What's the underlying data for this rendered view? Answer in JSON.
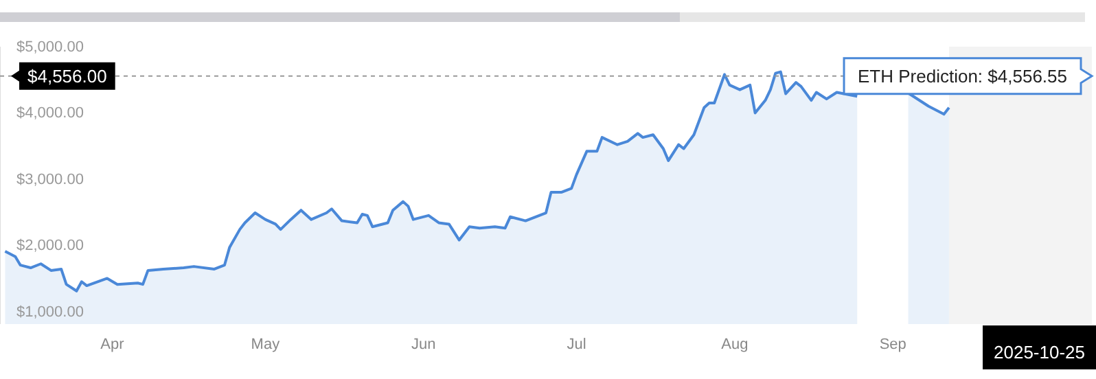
{
  "chart_data": {
    "type": "area",
    "x": [
      "2025-03-11",
      "2025-03-13",
      "2025-03-14",
      "2025-03-16",
      "2025-03-18",
      "2025-03-20",
      "2025-03-22",
      "2025-03-23",
      "2025-03-25",
      "2025-03-26",
      "2025-03-27",
      "2025-03-31",
      "2025-04-02",
      "2025-04-06",
      "2025-04-07",
      "2025-04-08",
      "2025-04-11",
      "2025-04-15",
      "2025-04-17",
      "2025-04-21",
      "2025-04-23",
      "2025-04-24",
      "2025-04-26",
      "2025-04-27",
      "2025-04-29",
      "2025-05-01",
      "2025-05-03",
      "2025-05-04",
      "2025-05-06",
      "2025-05-08",
      "2025-05-10",
      "2025-05-13",
      "2025-05-14",
      "2025-05-16",
      "2025-05-19",
      "2025-05-20",
      "2025-05-21",
      "2025-05-22",
      "2025-05-25",
      "2025-05-26",
      "2025-05-28",
      "2025-05-29",
      "2025-05-30",
      "2025-06-02",
      "2025-06-04",
      "2025-06-06",
      "2025-06-08",
      "2025-06-10",
      "2025-06-12",
      "2025-06-15",
      "2025-06-17",
      "2025-06-18",
      "2025-06-21",
      "2025-06-23",
      "2025-06-25",
      "2025-06-26",
      "2025-06-28",
      "2025-06-30",
      "2025-07-01",
      "2025-07-03",
      "2025-07-05",
      "2025-07-06",
      "2025-07-09",
      "2025-07-11",
      "2025-07-13",
      "2025-07-14",
      "2025-07-16",
      "2025-07-18",
      "2025-07-19",
      "2025-07-21",
      "2025-07-22",
      "2025-07-24",
      "2025-07-26",
      "2025-07-27",
      "2025-07-28",
      "2025-07-30",
      "2025-07-31",
      "2025-08-02",
      "2025-08-04",
      "2025-08-05",
      "2025-08-07",
      "2025-08-08",
      "2025-08-09",
      "2025-08-10",
      "2025-08-11",
      "2025-08-13",
      "2025-08-14",
      "2025-08-16",
      "2025-08-17",
      "2025-08-19",
      "2025-08-21",
      "2025-08-25",
      "2025-08-30",
      "2025-09-04",
      "2025-09-08",
      "2025-09-11",
      "2025-09-12"
    ],
    "series": [
      {
        "color": "#4a88d8",
        "values": [
          1910,
          1830,
          1700,
          1660,
          1720,
          1620,
          1640,
          1410,
          1310,
          1450,
          1390,
          1500,
          1410,
          1430,
          1410,
          1620,
          1640,
          1660,
          1680,
          1640,
          1700,
          1970,
          2240,
          2340,
          2490,
          2390,
          2320,
          2240,
          2390,
          2530,
          2390,
          2490,
          2550,
          2370,
          2340,
          2470,
          2450,
          2280,
          2340,
          2530,
          2660,
          2590,
          2390,
          2450,
          2340,
          2320,
          2080,
          2280,
          2260,
          2280,
          2260,
          2430,
          2370,
          2430,
          2490,
          2800,
          2800,
          2860,
          3070,
          3420,
          3420,
          3630,
          3520,
          3570,
          3690,
          3630,
          3670,
          3460,
          3280,
          3520,
          3460,
          3670,
          4080,
          4150,
          4150,
          4580,
          4420,
          4350,
          4420,
          4000,
          4190,
          4350,
          4600,
          4620,
          4290,
          4460,
          4400,
          4190,
          4310,
          4210,
          4310,
          4250,
          null,
          4300,
          4100,
          3980,
          4080
        ]
      }
    ],
    "xlim": [
      "2025-03-10",
      "2025-10-10"
    ],
    "xticks": [
      {
        "value": "2025-04-01",
        "label": "Apr"
      },
      {
        "value": "2025-05-01",
        "label": "May"
      },
      {
        "value": "2025-06-01",
        "label": "Jun"
      },
      {
        "value": "2025-07-01",
        "label": "Jul"
      },
      {
        "value": "2025-08-01",
        "label": "Aug"
      },
      {
        "value": "2025-09-01",
        "label": "Sep"
      }
    ],
    "ylim": [
      810,
      5000
    ],
    "yticks": [
      {
        "value": 1000,
        "label": "$1,000.00"
      },
      {
        "value": 2000,
        "label": "$2,000.00"
      },
      {
        "value": 3000,
        "label": "$3,000.00"
      },
      {
        "value": 4000,
        "label": "$4,000.00"
      },
      {
        "value": 5000,
        "label": "$5,000.00"
      }
    ],
    "grid": false,
    "ref_lines": [
      {
        "axis": "y",
        "value": 4556,
        "label": "$4,556.00",
        "color": "#999999",
        "line_style": "dashed"
      }
    ],
    "bands": [
      {
        "axis": "x",
        "from": "2025-09-12",
        "to": "2025-10-10",
        "color": "#f3f3f3"
      }
    ],
    "annotations": [
      {
        "text": "ETH Prediction: $4,556.55",
        "x": "2025-10-10",
        "y": 4556.55
      },
      "2025-10-25"
    ]
  }
}
